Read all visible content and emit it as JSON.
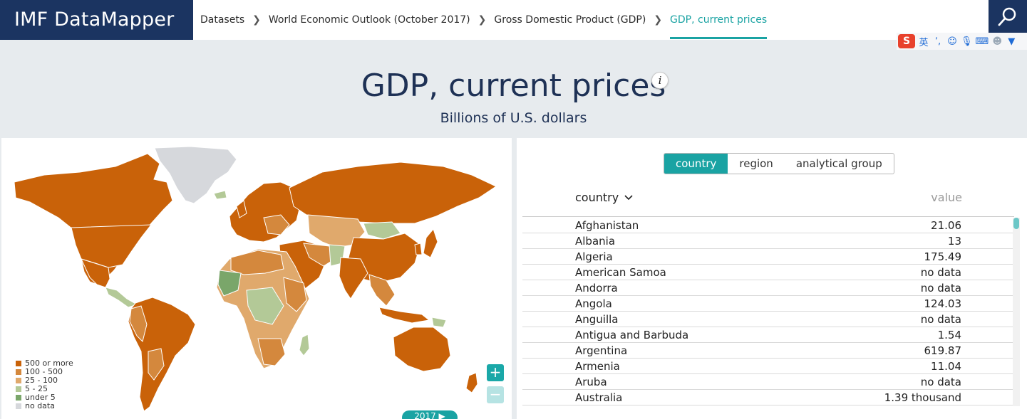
{
  "app": {
    "brand": "IMF DataMapper"
  },
  "breadcrumbs": [
    {
      "label": "Datasets"
    },
    {
      "label": "World Economic Outlook (October 2017)"
    },
    {
      "label": "Gross Domestic Product (GDP)"
    },
    {
      "label": "GDP, current prices"
    }
  ],
  "ime_toolbar": {
    "logo": "S",
    "lang": "英",
    "items": [
      "punctuation-icon",
      "emoji-icon",
      "mic-icon",
      "keyboard-icon",
      "user-icon",
      "skin-icon"
    ]
  },
  "page": {
    "title": "GDP, current prices",
    "info_label": "i",
    "subtitle": "Billions of U.S. dollars"
  },
  "map": {
    "legend": [
      {
        "label": "500 or more",
        "color": "#c96209"
      },
      {
        "label": "100 - 500",
        "color": "#d4883d"
      },
      {
        "label": "25 - 100",
        "color": "#e0a96c"
      },
      {
        "label": "5 - 25",
        "color": "#b3c997"
      },
      {
        "label": "under 5",
        "color": "#7aa66a"
      },
      {
        "label": "no data",
        "color": "#d6d8dc"
      }
    ],
    "zoom_in": "+",
    "zoom_out": "−",
    "year": "2017 ▶"
  },
  "tabs": [
    "country",
    "region",
    "analytical group"
  ],
  "table": {
    "col_country": "country",
    "col_value": "value",
    "rows": [
      {
        "country": "Afghanistan",
        "value": "21.06"
      },
      {
        "country": "Albania",
        "value": "13"
      },
      {
        "country": "Algeria",
        "value": "175.49"
      },
      {
        "country": "American Samoa",
        "value": "no data"
      },
      {
        "country": "Andorra",
        "value": "no data"
      },
      {
        "country": "Angola",
        "value": "124.03"
      },
      {
        "country": "Anguilla",
        "value": "no data"
      },
      {
        "country": "Antigua and Barbuda",
        "value": "1.54"
      },
      {
        "country": "Argentina",
        "value": "619.87"
      },
      {
        "country": "Armenia",
        "value": "11.04"
      },
      {
        "country": "Aruba",
        "value": "no data"
      },
      {
        "country": "Australia",
        "value": "1.39 thousand"
      }
    ]
  }
}
